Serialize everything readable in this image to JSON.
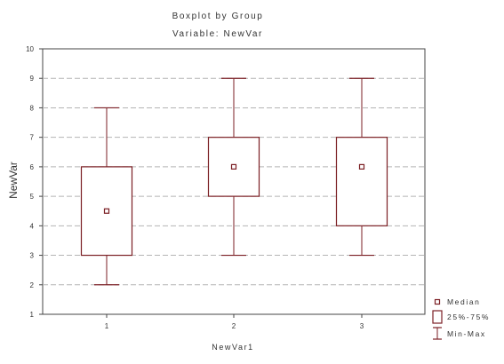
{
  "chart_data": {
    "type": "boxplot",
    "title": "Boxplot by Group",
    "subtitle": "Variable: NewVar",
    "xlabel": "NewVar1",
    "ylabel": "NewVar",
    "ylim": [
      1,
      10
    ],
    "y_ticks": [
      "1",
      "2",
      "3",
      "4",
      "5",
      "6",
      "7",
      "8",
      "9",
      "10"
    ],
    "grid": true,
    "legend_placement": "bottom-right",
    "colors": {
      "box": "#7b1f24",
      "grid": "#b4b4b4",
      "axis": "#444444"
    },
    "categories": [
      "1",
      "2",
      "3"
    ],
    "groups": [
      {
        "category": "1",
        "min": 2,
        "q1": 3,
        "median": 4.5,
        "q3": 6,
        "max": 8
      },
      {
        "category": "2",
        "min": 3,
        "q1": 5,
        "median": 6,
        "q3": 7,
        "max": 9
      },
      {
        "category": "3",
        "min": 3,
        "q1": 4,
        "median": 6,
        "q3": 7,
        "max": 9
      }
    ],
    "legend": [
      {
        "symbol": "median-marker",
        "label": "Median"
      },
      {
        "symbol": "box",
        "label": "25%-75%"
      },
      {
        "symbol": "whisker",
        "label": "Min-Max"
      }
    ]
  }
}
